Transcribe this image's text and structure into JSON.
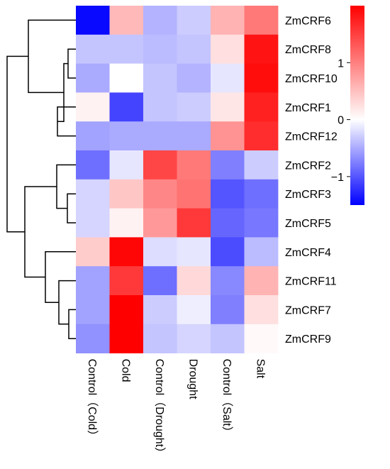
{
  "chart_data": {
    "type": "heatmap",
    "rows": [
      "ZmCRF6",
      "ZmCRF8",
      "ZmCRF10",
      "ZmCRF1",
      "ZmCRF12",
      "ZmCRF2",
      "ZmCRF3",
      "ZmCRF5",
      "ZmCRF4",
      "ZmCRF11",
      "ZmCRF7",
      "ZmCRF9"
    ],
    "columns": [
      "Control（Cold）",
      "Cold",
      "Control（Drought）",
      "Drought",
      "Control（Salt）",
      "Salt"
    ],
    "values": [
      [
        -1.45,
        0.55,
        -0.45,
        -0.3,
        0.6,
        1.05
      ],
      [
        -0.35,
        -0.35,
        -0.4,
        -0.35,
        0.25,
        1.85
      ],
      [
        -0.5,
        0.0,
        -0.35,
        -0.45,
        -0.15,
        1.9
      ],
      [
        0.1,
        -1.1,
        -0.35,
        -0.3,
        0.2,
        1.75
      ],
      [
        -0.55,
        -0.5,
        -0.5,
        -0.5,
        0.85,
        1.65
      ],
      [
        -0.85,
        -0.15,
        1.45,
        1.05,
        -0.75,
        -0.3
      ],
      [
        -0.25,
        0.45,
        0.95,
        1.1,
        -1.0,
        -0.85
      ],
      [
        -0.25,
        0.1,
        0.8,
        1.55,
        -0.9,
        -0.8
      ],
      [
        0.4,
        1.95,
        -0.2,
        -0.15,
        -1.05,
        -0.4
      ],
      [
        -0.55,
        1.55,
        -0.85,
        0.3,
        -0.7,
        0.6
      ],
      [
        -0.55,
        2.0,
        -0.3,
        -0.1,
        -0.75,
        0.25
      ],
      [
        -0.65,
        2.0,
        -0.35,
        -0.25,
        -0.35,
        0.05
      ]
    ],
    "color_scale": {
      "min": -1.5,
      "max": 2.0,
      "low_color": "#0000ff",
      "mid_color": "#ffffff",
      "high_color": "#ff0000",
      "ticks": [
        "1",
        "0",
        "−1"
      ],
      "tick_values": [
        1,
        0,
        -1
      ]
    },
    "row_dendrogram": true
  }
}
